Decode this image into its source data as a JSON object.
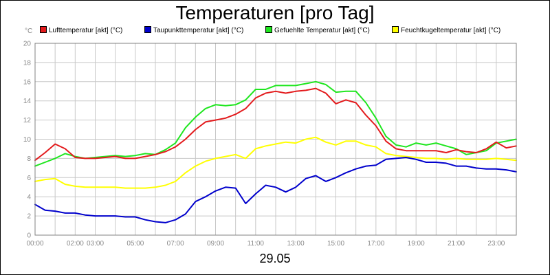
{
  "chart_data": {
    "type": "line",
    "title": "Temperaturen [pro Tag]",
    "xlabel": "29.05",
    "ylabel": "°C",
    "ylim": [
      0,
      20
    ],
    "xlim_hours": [
      0,
      24
    ],
    "yticks": [
      0,
      2,
      4,
      6,
      8,
      10,
      12,
      14,
      16,
      18,
      20
    ],
    "xtick_labels": [
      {
        "h": 0,
        "label": "00:00"
      },
      {
        "h": 2,
        "label": "02:00"
      },
      {
        "h": 3,
        "label": "03:00"
      },
      {
        "h": 5,
        "label": "05:00"
      },
      {
        "h": 7,
        "label": "07:00"
      },
      {
        "h": 9,
        "label": "09:00"
      },
      {
        "h": 11,
        "label": "11:00"
      },
      {
        "h": 13,
        "label": "13:00"
      },
      {
        "h": 15,
        "label": "15:00"
      },
      {
        "h": 17,
        "label": "17:00"
      },
      {
        "h": 19,
        "label": "19:00"
      },
      {
        "h": 21,
        "label": "21:00"
      },
      {
        "h": 23,
        "label": "23:00"
      }
    ],
    "grid": true,
    "legend_position": "top",
    "series": [
      {
        "name": "Lufttemperatur [akt] (°C)",
        "color": "#e31a1c",
        "x": [
          0,
          0.5,
          1,
          1.5,
          2,
          2.5,
          3,
          3.5,
          4,
          4.5,
          5,
          5.5,
          6,
          6.5,
          7,
          7.5,
          8,
          8.5,
          9,
          9.5,
          10,
          10.5,
          11,
          11.5,
          12,
          12.5,
          13,
          13.5,
          14,
          14.5,
          15,
          15.5,
          16,
          16.5,
          17,
          17.5,
          18,
          18.5,
          19,
          19.5,
          20,
          20.5,
          21,
          21.5,
          22,
          22.5,
          23,
          23.5,
          24
        ],
        "values": [
          7.8,
          8.6,
          9.5,
          9.0,
          8.1,
          8.0,
          8.0,
          8.1,
          8.2,
          8.0,
          8.0,
          8.2,
          8.4,
          8.7,
          9.2,
          10.0,
          11.0,
          11.8,
          12.0,
          12.2,
          12.6,
          13.2,
          14.3,
          14.8,
          15.0,
          14.8,
          15.0,
          15.1,
          15.3,
          14.8,
          13.7,
          14.1,
          13.8,
          12.5,
          11.4,
          9.8,
          9.0,
          8.8,
          8.8,
          8.8,
          8.8,
          8.6,
          8.9,
          8.7,
          8.6,
          9.0,
          9.7,
          9.1,
          9.3
        ]
      },
      {
        "name": "Taupunkttemperatur [akt] (°C)",
        "color": "#0000cc",
        "x": [
          0,
          0.5,
          1,
          1.5,
          2,
          2.5,
          3,
          3.5,
          4,
          4.5,
          5,
          5.5,
          6,
          6.5,
          7,
          7.5,
          8,
          8.5,
          9,
          9.5,
          10,
          10.5,
          11,
          11.5,
          12,
          12.5,
          13,
          13.5,
          14,
          14.5,
          15,
          15.5,
          16,
          16.5,
          17,
          17.5,
          18,
          18.5,
          19,
          19.5,
          20,
          20.5,
          21,
          21.5,
          22,
          22.5,
          23,
          23.5,
          24
        ],
        "values": [
          3.2,
          2.6,
          2.5,
          2.3,
          2.3,
          2.1,
          2.0,
          2.0,
          2.0,
          1.9,
          1.9,
          1.6,
          1.4,
          1.3,
          1.6,
          2.2,
          3.5,
          4.0,
          4.6,
          5.0,
          4.9,
          3.3,
          4.3,
          5.2,
          5.0,
          4.5,
          5.0,
          5.9,
          6.2,
          5.6,
          6.0,
          6.5,
          6.9,
          7.2,
          7.3,
          7.9,
          8.0,
          8.1,
          7.9,
          7.6,
          7.6,
          7.5,
          7.2,
          7.2,
          7.0,
          6.9,
          6.9,
          6.8,
          6.6
        ]
      },
      {
        "name": "Gefuehlte Temperatur [akt] (°C)",
        "color": "#1ee61e",
        "x": [
          0,
          0.5,
          1,
          1.5,
          2,
          2.5,
          3,
          3.5,
          4,
          4.5,
          5,
          5.5,
          6,
          6.5,
          7,
          7.5,
          8,
          8.5,
          9,
          9.5,
          10,
          10.5,
          11,
          11.5,
          12,
          12.5,
          13,
          13.5,
          14,
          14.5,
          15,
          15.5,
          16,
          16.5,
          17,
          17.5,
          18,
          18.5,
          19,
          19.5,
          20,
          20.5,
          21,
          21.5,
          22,
          22.5,
          23,
          23.5,
          24
        ],
        "values": [
          7.2,
          7.6,
          8.0,
          8.5,
          8.2,
          8.0,
          8.1,
          8.2,
          8.3,
          8.2,
          8.3,
          8.5,
          8.4,
          8.9,
          9.6,
          11.2,
          12.3,
          13.2,
          13.6,
          13.5,
          13.6,
          14.1,
          15.2,
          15.2,
          15.6,
          15.6,
          15.6,
          15.8,
          16.0,
          15.7,
          14.9,
          15.0,
          15.0,
          13.8,
          12.2,
          10.3,
          9.4,
          9.2,
          9.6,
          9.4,
          9.6,
          9.3,
          9.0,
          8.4,
          8.6,
          8.8,
          9.6,
          9.8,
          10.0
        ]
      },
      {
        "name": "Feuchtkugeltemperatur [akt] (°C)",
        "color": "#ffff00",
        "x": [
          0,
          0.5,
          1,
          1.5,
          2,
          2.5,
          3,
          3.5,
          4,
          4.5,
          5,
          5.5,
          6,
          6.5,
          7,
          7.5,
          8,
          8.5,
          9,
          9.5,
          10,
          10.5,
          11,
          11.5,
          12,
          12.5,
          13,
          13.5,
          14,
          14.5,
          15,
          15.5,
          16,
          16.5,
          17,
          17.5,
          18,
          18.5,
          19,
          19.5,
          20,
          20.5,
          21,
          21.5,
          22,
          22.5,
          23,
          23.5,
          24
        ],
        "values": [
          5.6,
          5.8,
          5.9,
          5.3,
          5.1,
          5.0,
          5.0,
          5.0,
          5.0,
          4.9,
          4.9,
          4.9,
          5.0,
          5.2,
          5.6,
          6.5,
          7.2,
          7.7,
          8.0,
          8.2,
          8.4,
          8.0,
          9.0,
          9.3,
          9.5,
          9.7,
          9.6,
          10.0,
          10.2,
          9.7,
          9.4,
          9.8,
          9.8,
          9.4,
          9.2,
          8.5,
          8.3,
          8.2,
          8.1,
          8.0,
          8.0,
          7.9,
          8.0,
          7.9,
          7.9,
          7.9,
          8.0,
          7.9,
          7.8
        ]
      }
    ]
  }
}
